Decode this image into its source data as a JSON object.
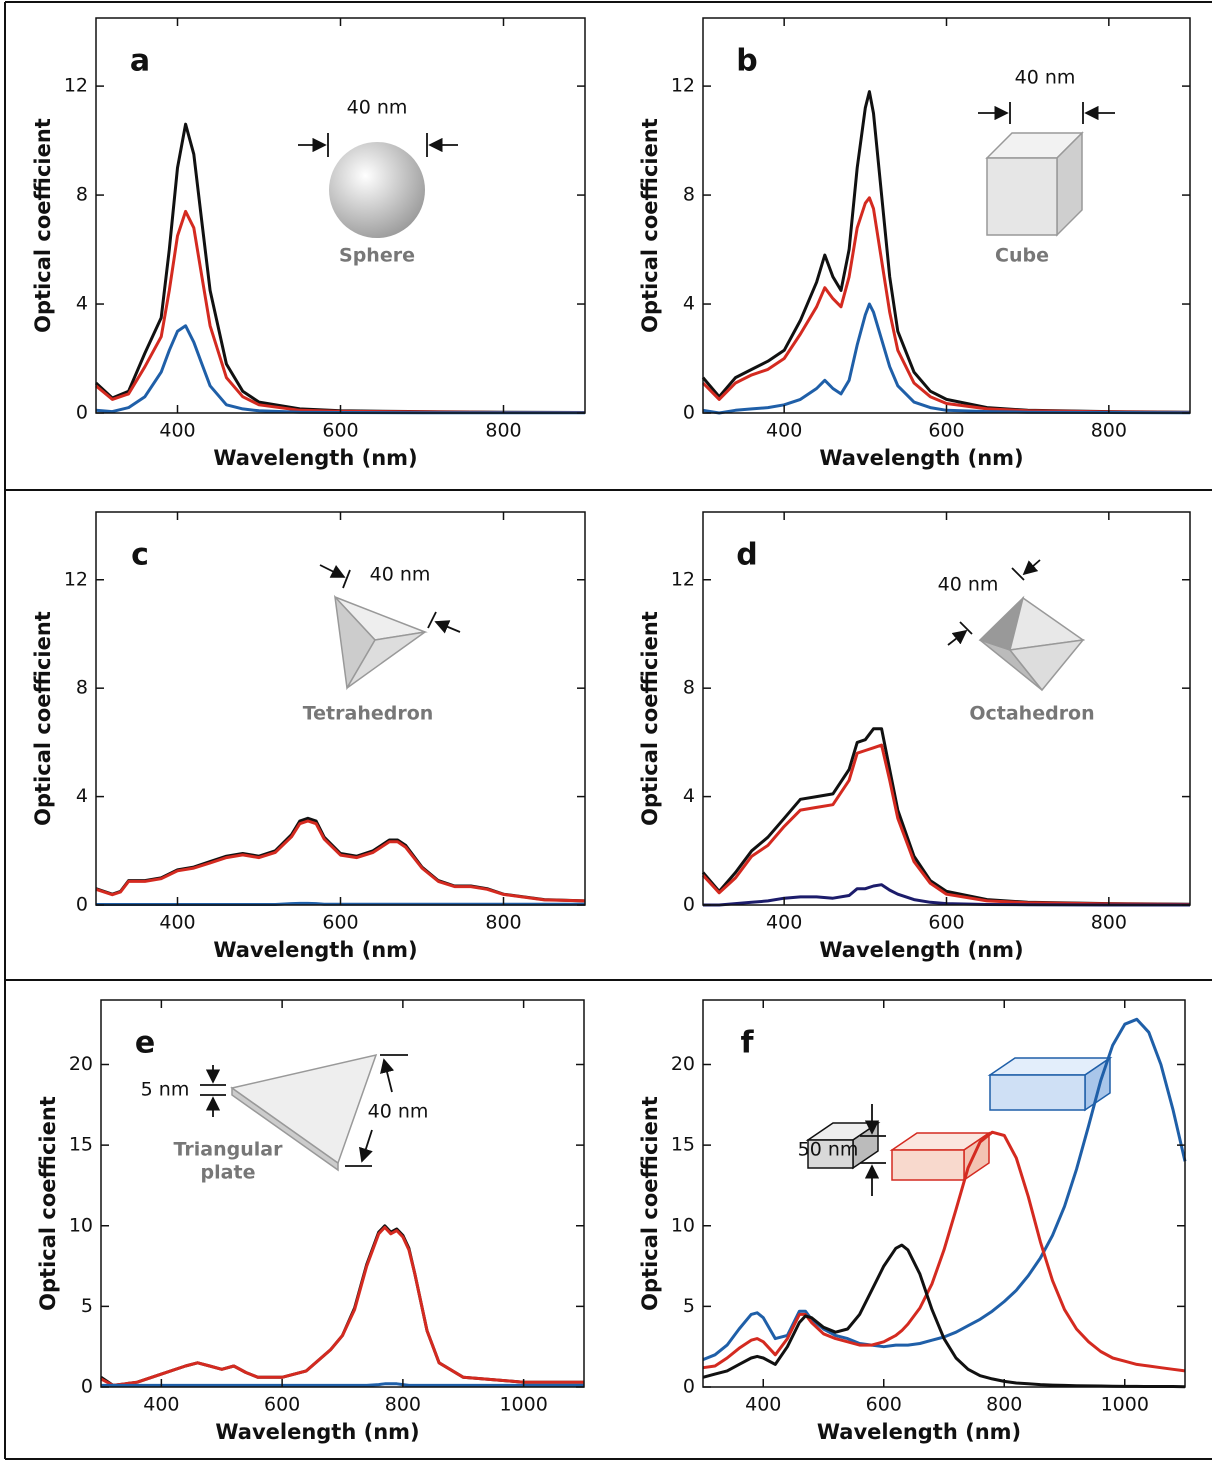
{
  "chart_data": [
    {
      "type": "line",
      "panel_label": "a",
      "x_label": "Wavelength (nm)",
      "y_label": "Optical coefficient",
      "x": [
        300,
        320,
        340,
        360,
        380,
        390,
        400,
        410,
        420,
        430,
        440,
        460,
        480,
        500,
        550,
        600,
        700,
        800,
        900
      ],
      "series": [
        {
          "color": "#111111",
          "values": [
            1.1,
            0.55,
            0.8,
            2.2,
            3.5,
            6,
            9,
            10.6,
            9.5,
            7,
            4.5,
            1.8,
            0.8,
            0.4,
            0.15,
            0.08,
            0.05,
            0.03,
            0.02
          ]
        },
        {
          "color": "#d42a20",
          "values": [
            1.0,
            0.5,
            0.7,
            1.7,
            2.8,
            4.5,
            6.5,
            7.4,
            6.8,
            5,
            3.2,
            1.3,
            0.6,
            0.3,
            0.1,
            0.06,
            0.04,
            0.02,
            0.02
          ]
        },
        {
          "color": "#1f5fa8",
          "values": [
            0.1,
            0.05,
            0.2,
            0.6,
            1.5,
            2.3,
            3.0,
            3.2,
            2.6,
            1.8,
            1.0,
            0.3,
            0.15,
            0.08,
            0.03,
            0.02,
            0.01,
            0.01,
            0.01
          ]
        }
      ],
      "xlim": [
        300,
        900
      ],
      "xticks": [
        400,
        600,
        800
      ],
      "ylim": [
        0,
        14.5
      ],
      "yticks": [
        0,
        4,
        8,
        12
      ],
      "annotations": [
        "40 nm",
        "Sphere"
      ]
    },
    {
      "type": "line",
      "panel_label": "b",
      "x_label": "Wavelength (nm)",
      "y_label": "Optical coefficient",
      "x": [
        300,
        320,
        340,
        360,
        380,
        400,
        420,
        440,
        450,
        460,
        470,
        480,
        490,
        500,
        505,
        510,
        520,
        530,
        540,
        560,
        580,
        600,
        650,
        700,
        800,
        900
      ],
      "series": [
        {
          "color": "#111111",
          "values": [
            1.3,
            0.6,
            1.3,
            1.6,
            1.9,
            2.3,
            3.4,
            4.8,
            5.8,
            5.0,
            4.5,
            6.0,
            9.0,
            11.2,
            11.8,
            11.0,
            8,
            5,
            3,
            1.5,
            0.8,
            0.5,
            0.2,
            0.1,
            0.05,
            0.03
          ]
        },
        {
          "color": "#d42a20",
          "values": [
            1.1,
            0.5,
            1.1,
            1.4,
            1.6,
            2.0,
            2.9,
            3.9,
            4.6,
            4.2,
            3.9,
            5.0,
            6.8,
            7.7,
            7.9,
            7.5,
            5.6,
            3.7,
            2.3,
            1.1,
            0.6,
            0.35,
            0.15,
            0.08,
            0.04,
            0.02
          ]
        },
        {
          "color": "#1f5fa8",
          "values": [
            0.1,
            0,
            0.1,
            0.15,
            0.2,
            0.3,
            0.5,
            0.9,
            1.2,
            0.9,
            0.7,
            1.2,
            2.5,
            3.6,
            4.0,
            3.7,
            2.7,
            1.7,
            1.0,
            0.4,
            0.2,
            0.1,
            0.05,
            0.03,
            0.02,
            0.01
          ]
        }
      ],
      "xlim": [
        300,
        900
      ],
      "xticks": [
        400,
        600,
        800
      ],
      "ylim": [
        0,
        14.5
      ],
      "yticks": [
        0,
        4,
        8,
        12
      ],
      "annotations": [
        "40 nm",
        "Cube"
      ]
    },
    {
      "type": "line",
      "panel_label": "c",
      "x_label": "Wavelength (nm)",
      "y_label": "Optical coefficient",
      "x": [
        300,
        320,
        330,
        340,
        360,
        380,
        400,
        420,
        440,
        460,
        480,
        500,
        520,
        540,
        550,
        560,
        570,
        580,
        600,
        620,
        640,
        660,
        670,
        680,
        700,
        720,
        740,
        760,
        780,
        800,
        850,
        900
      ],
      "series": [
        {
          "color": "#111111",
          "values": [
            0.6,
            0.4,
            0.5,
            0.9,
            0.9,
            1.0,
            1.3,
            1.4,
            1.6,
            1.8,
            1.9,
            1.8,
            2.0,
            2.6,
            3.1,
            3.2,
            3.1,
            2.5,
            1.9,
            1.8,
            2.0,
            2.4,
            2.4,
            2.2,
            1.4,
            0.9,
            0.7,
            0.7,
            0.6,
            0.4,
            0.2,
            0.15
          ]
        },
        {
          "color": "#d42a20",
          "values": [
            0.58,
            0.38,
            0.48,
            0.87,
            0.87,
            0.97,
            1.26,
            1.36,
            1.55,
            1.75,
            1.85,
            1.75,
            1.94,
            2.52,
            3.0,
            3.1,
            3.0,
            2.43,
            1.84,
            1.75,
            1.94,
            2.33,
            2.33,
            2.13,
            1.36,
            0.87,
            0.68,
            0.68,
            0.58,
            0.39,
            0.19,
            0.15
          ]
        },
        {
          "color": "#1f5fa8",
          "values": [
            0.02,
            0.02,
            0.02,
            0.02,
            0.02,
            0.02,
            0.02,
            0.02,
            0.02,
            0.02,
            0.02,
            0.02,
            0.02,
            0.05,
            0.06,
            0.06,
            0.05,
            0.03,
            0.03,
            0.03,
            0.03,
            0.03,
            0.03,
            0.03,
            0.03,
            0.03,
            0.03,
            0.03,
            0.03,
            0.03,
            0.03,
            0.03
          ]
        }
      ],
      "xlim": [
        300,
        900
      ],
      "xticks": [
        400,
        600,
        800
      ],
      "ylim": [
        0,
        14.5
      ],
      "yticks": [
        0,
        4,
        8,
        12
      ],
      "annotations": [
        "40 nm",
        "Tetrahedron"
      ]
    },
    {
      "type": "line",
      "panel_label": "d",
      "x_label": "Wavelength (nm)",
      "y_label": "Optical coefficient",
      "x": [
        300,
        320,
        340,
        360,
        380,
        400,
        420,
        440,
        460,
        480,
        490,
        500,
        510,
        520,
        530,
        540,
        560,
        580,
        600,
        650,
        700,
        800,
        900
      ],
      "series": [
        {
          "color": "#111111",
          "values": [
            1.2,
            0.5,
            1.2,
            2.0,
            2.5,
            3.2,
            3.9,
            4.0,
            4.1,
            5.0,
            6.0,
            6.1,
            6.5,
            6.5,
            5.0,
            3.5,
            1.8,
            0.9,
            0.5,
            0.2,
            0.1,
            0.05,
            0.03
          ]
        },
        {
          "color": "#d42a20",
          "values": [
            1.1,
            0.45,
            1.0,
            1.8,
            2.2,
            2.9,
            3.5,
            3.6,
            3.7,
            4.6,
            5.6,
            5.7,
            5.8,
            5.9,
            4.6,
            3.2,
            1.6,
            0.8,
            0.4,
            0.15,
            0.08,
            0.04,
            0.02
          ]
        },
        {
          "color": "#1c1c6b",
          "values": [
            0,
            0,
            0.05,
            0.1,
            0.15,
            0.25,
            0.3,
            0.3,
            0.25,
            0.35,
            0.6,
            0.6,
            0.7,
            0.75,
            0.55,
            0.4,
            0.2,
            0.1,
            0.05,
            0.02,
            0.01,
            0,
            0
          ]
        }
      ],
      "xlim": [
        300,
        900
      ],
      "xticks": [
        400,
        600,
        800
      ],
      "ylim": [
        0,
        14.5
      ],
      "yticks": [
        0,
        4,
        8,
        12
      ],
      "annotations": [
        "40 nm",
        "Octahedron"
      ]
    },
    {
      "type": "line",
      "panel_label": "e",
      "x_label": "Wavelength (nm)",
      "y_label": "Optical coefficient",
      "x": [
        300,
        320,
        340,
        360,
        400,
        440,
        460,
        480,
        500,
        520,
        540,
        560,
        600,
        640,
        680,
        700,
        720,
        740,
        760,
        770,
        780,
        790,
        800,
        810,
        820,
        840,
        860,
        900,
        1000,
        1100
      ],
      "series": [
        {
          "color": "#111111",
          "values": [
            0.6,
            0.1,
            0.2,
            0.3,
            0.8,
            1.3,
            1.5,
            1.3,
            1.1,
            1.3,
            0.9,
            0.6,
            0.6,
            1.0,
            2.3,
            3.2,
            4.9,
            7.6,
            9.6,
            10.0,
            9.6,
            9.8,
            9.4,
            8.6,
            7,
            3.5,
            1.5,
            0.6,
            0.3,
            0.3
          ]
        },
        {
          "color": "#d42a20",
          "values": [
            0.5,
            0.1,
            0.2,
            0.3,
            0.8,
            1.3,
            1.5,
            1.3,
            1.1,
            1.3,
            0.9,
            0.6,
            0.6,
            1.0,
            2.3,
            3.2,
            4.8,
            7.5,
            9.5,
            9.9,
            9.5,
            9.7,
            9.3,
            8.5,
            7,
            3.5,
            1.5,
            0.6,
            0.3,
            0.3
          ]
        },
        {
          "color": "#1f5fa8",
          "values": [
            0.1,
            0.1,
            0.1,
            0.1,
            0.1,
            0.1,
            0.1,
            0.1,
            0.1,
            0.1,
            0.1,
            0.1,
            0.1,
            0.1,
            0.1,
            0.1,
            0.1,
            0.1,
            0.15,
            0.2,
            0.2,
            0.2,
            0.15,
            0.1,
            0.1,
            0.1,
            0.1,
            0.1,
            0.1,
            0.1
          ]
        }
      ],
      "xlim": [
        300,
        1100
      ],
      "xticks": [
        400,
        600,
        800,
        1000
      ],
      "ylim": [
        0,
        24
      ],
      "yticks": [
        0,
        5,
        10,
        15,
        20
      ],
      "annotations": [
        "5 nm",
        "40 nm",
        "Triangular",
        "plate"
      ]
    },
    {
      "type": "line",
      "panel_label": "f",
      "x_label": "Wavelength (nm)",
      "y_label": "Optical coefficient",
      "x": [
        300,
        320,
        340,
        360,
        380,
        390,
        400,
        420,
        440,
        460,
        470,
        480,
        500,
        520,
        540,
        560,
        580,
        600,
        620,
        630,
        640,
        660,
        680,
        700,
        720,
        740,
        760,
        780,
        800,
        820,
        840,
        860,
        880,
        900,
        920,
        940,
        960,
        980,
        1000,
        1020,
        1040,
        1060,
        1080,
        1100
      ],
      "series": [
        {
          "color": "#1f5fa8",
          "values": [
            1.7,
            2.0,
            2.6,
            3.6,
            4.5,
            4.6,
            4.3,
            3.0,
            3.2,
            4.7,
            4.7,
            4.2,
            3.6,
            3.2,
            3.0,
            2.7,
            2.6,
            2.5,
            2.6,
            2.6,
            2.6,
            2.7,
            2.9,
            3.1,
            3.4,
            3.8,
            4.2,
            4.7,
            5.3,
            6.0,
            6.9,
            8.0,
            9.4,
            11.2,
            13.5,
            16.2,
            19.0,
            21.2,
            22.5,
            22.8,
            22.0,
            20.0,
            17.2,
            14.0
          ]
        },
        {
          "color": "#d42a20",
          "values": [
            1.2,
            1.3,
            1.8,
            2.4,
            2.9,
            3.0,
            2.8,
            2.0,
            3.0,
            4.5,
            4.5,
            4.0,
            3.3,
            3.0,
            2.8,
            2.6,
            2.6,
            2.8,
            3.2,
            3.5,
            3.9,
            4.9,
            6.4,
            8.5,
            11,
            13.6,
            15.2,
            15.8,
            15.6,
            14.2,
            11.8,
            9.0,
            6.6,
            4.8,
            3.6,
            2.8,
            2.2,
            1.8,
            1.6,
            1.4,
            1.3,
            1.2,
            1.1,
            1.0
          ]
        },
        {
          "color": "#111111",
          "values": [
            0.6,
            0.8,
            1.0,
            1.4,
            1.8,
            1.9,
            1.8,
            1.4,
            2.5,
            4.0,
            4.4,
            4.3,
            3.7,
            3.4,
            3.6,
            4.5,
            6.0,
            7.5,
            8.6,
            8.8,
            8.5,
            7.0,
            4.8,
            3.0,
            1.8,
            1.1,
            0.7,
            0.5,
            0.35,
            0.25,
            0.2,
            0.15,
            0.12,
            0.1,
            0.08,
            0.07,
            0.06,
            0.05,
            0.04,
            0.04,
            0.03,
            0.03,
            0.03,
            0.02
          ]
        }
      ],
      "xlim": [
        300,
        1100
      ],
      "xticks": [
        400,
        600,
        800,
        1000
      ],
      "ylim": [
        0,
        24
      ],
      "yticks": [
        0,
        5,
        10,
        15,
        20
      ],
      "annotations": [
        "50 nm"
      ]
    }
  ]
}
